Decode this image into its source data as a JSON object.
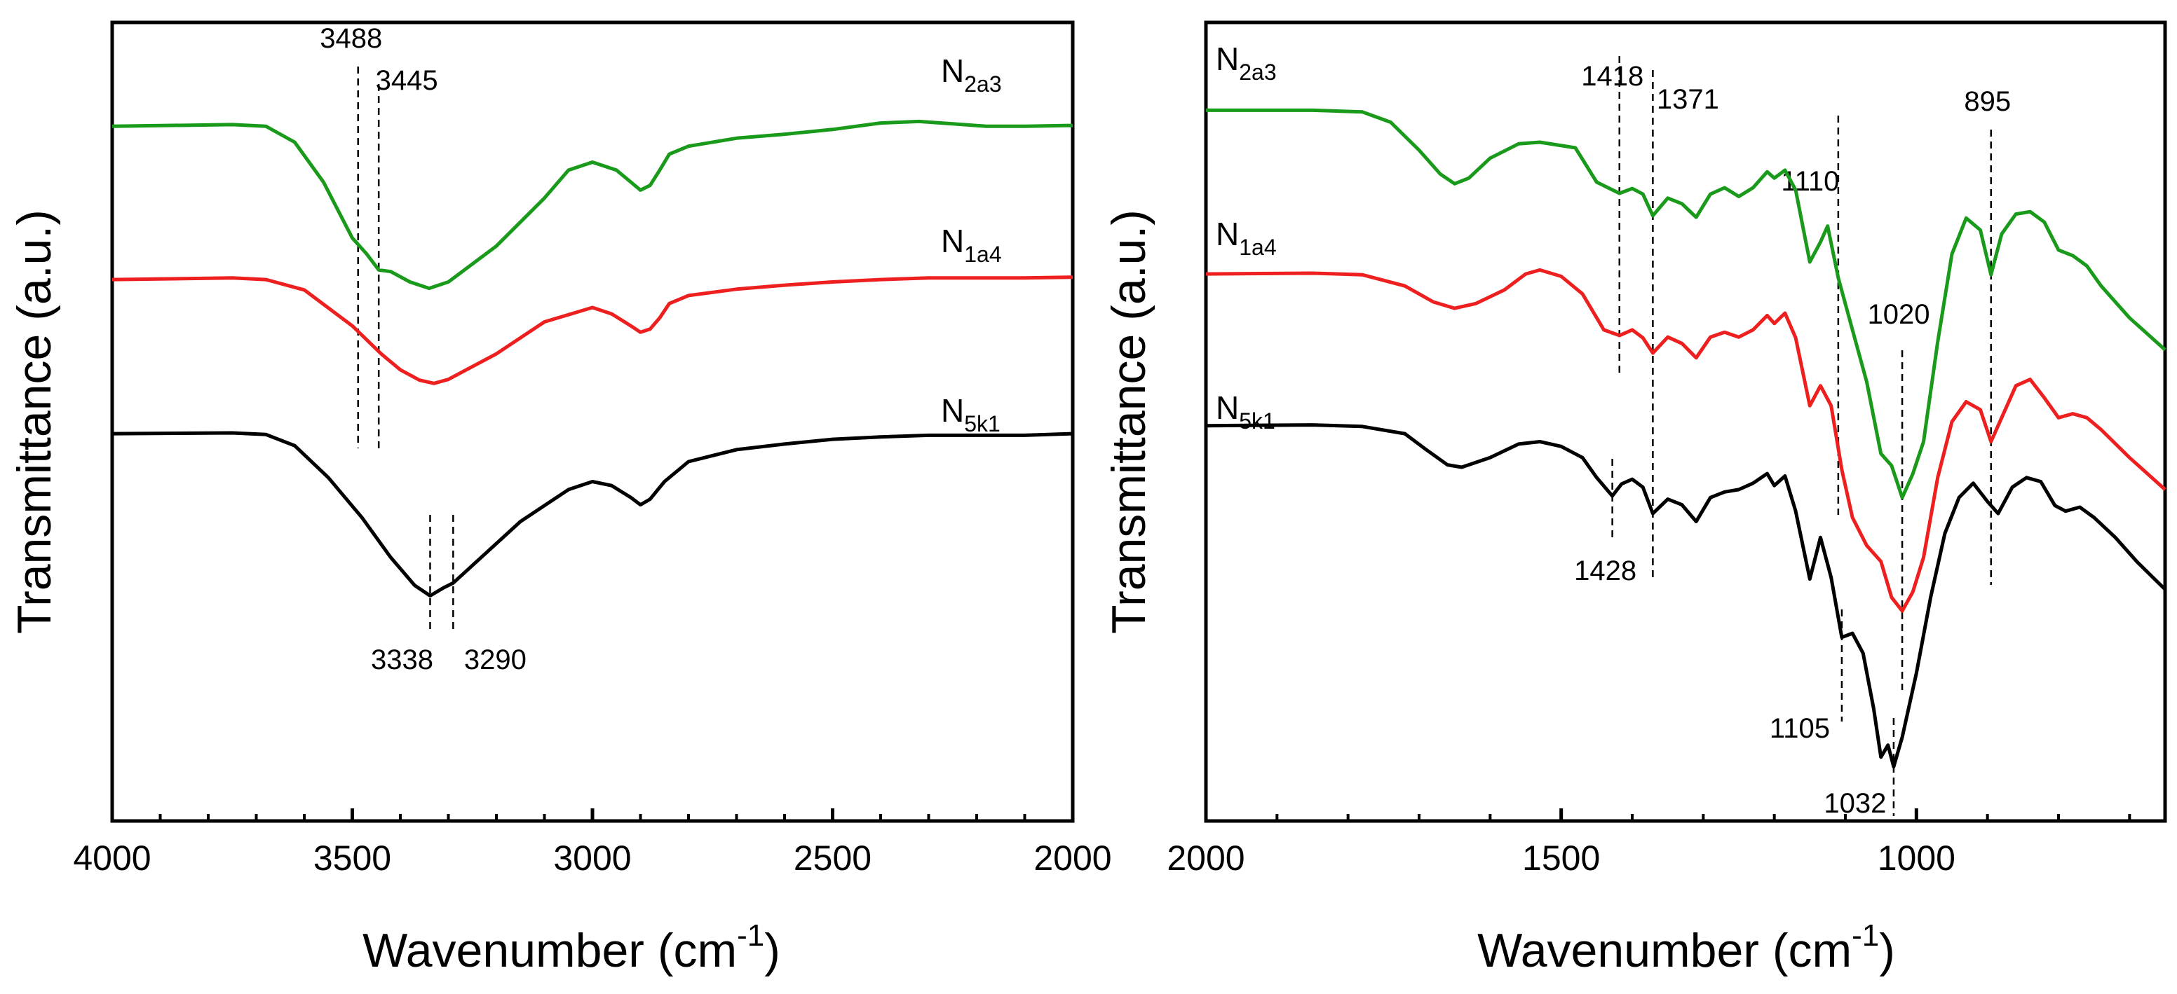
{
  "chart_data": [
    {
      "type": "line",
      "xlabel": "Wavenumber (cm-1)",
      "xlabel_main": "Wavenumber (cm",
      "xlabel_sup": "-1",
      "xlabel_close": ")",
      "ylabel": "Transmittance (a.u.)",
      "xlim": [
        4000,
        2000
      ],
      "ylim": [
        0,
        100
      ],
      "xticks": [
        4000,
        3500,
        3000,
        2500,
        2000
      ],
      "xtick_labels": [
        "4000",
        "3500",
        "3000",
        "2500",
        "2000"
      ],
      "series": [
        {
          "name": "N2a3",
          "base": "N",
          "sub": "2a3",
          "color": "#1a9a1a",
          "points": [
            [
              4000,
              87
            ],
            [
              3750,
              87.2
            ],
            [
              3680,
              87
            ],
            [
              3620,
              85
            ],
            [
              3560,
              80
            ],
            [
              3500,
              73
            ],
            [
              3470,
              71
            ],
            [
              3445,
              69
            ],
            [
              3420,
              68.8
            ],
            [
              3380,
              67.5
            ],
            [
              3340,
              66.7
            ],
            [
              3300,
              67.5
            ],
            [
              3200,
              72
            ],
            [
              3100,
              78
            ],
            [
              3050,
              81.5
            ],
            [
              3000,
              82.5
            ],
            [
              2950,
              81.5
            ],
            [
              2920,
              80
            ],
            [
              2900,
              79
            ],
            [
              2880,
              79.6
            ],
            [
              2860,
              81.5
            ],
            [
              2840,
              83.5
            ],
            [
              2800,
              84.5
            ],
            [
              2700,
              85.5
            ],
            [
              2600,
              86
            ],
            [
              2500,
              86.6
            ],
            [
              2400,
              87.4
            ],
            [
              2320,
              87.6
            ],
            [
              2250,
              87.3
            ],
            [
              2180,
              87
            ],
            [
              2100,
              87
            ],
            [
              2000,
              87.1
            ]
          ]
        },
        {
          "name": "N1a4",
          "base": "N",
          "sub": "1a4",
          "color": "#ee1f1f",
          "points": [
            [
              4000,
              67.8
            ],
            [
              3750,
              68
            ],
            [
              3680,
              67.8
            ],
            [
              3600,
              66.5
            ],
            [
              3500,
              62
            ],
            [
              3440,
              58.5
            ],
            [
              3400,
              56.5
            ],
            [
              3360,
              55.2
            ],
            [
              3330,
              54.8
            ],
            [
              3300,
              55.3
            ],
            [
              3200,
              58.5
            ],
            [
              3100,
              62.5
            ],
            [
              3000,
              64.3
            ],
            [
              2960,
              63.5
            ],
            [
              2920,
              62
            ],
            [
              2900,
              61.2
            ],
            [
              2880,
              61.6
            ],
            [
              2860,
              63
            ],
            [
              2840,
              64.8
            ],
            [
              2800,
              65.8
            ],
            [
              2700,
              66.6
            ],
            [
              2600,
              67.1
            ],
            [
              2500,
              67.5
            ],
            [
              2400,
              67.8
            ],
            [
              2300,
              68
            ],
            [
              2200,
              68
            ],
            [
              2100,
              68
            ],
            [
              2000,
              68.1
            ]
          ]
        },
        {
          "name": "N5k1",
          "base": "N",
          "sub": "5k1",
          "color": "#000000",
          "points": [
            [
              4000,
              48.5
            ],
            [
              3750,
              48.6
            ],
            [
              3680,
              48.4
            ],
            [
              3620,
              47
            ],
            [
              3550,
              43
            ],
            [
              3480,
              38
            ],
            [
              3420,
              33
            ],
            [
              3370,
              29.5
            ],
            [
              3338,
              28.2
            ],
            [
              3310,
              29.2
            ],
            [
              3290,
              29.8
            ],
            [
              3250,
              32
            ],
            [
              3150,
              37.5
            ],
            [
              3050,
              41.5
            ],
            [
              3000,
              42.5
            ],
            [
              2960,
              42
            ],
            [
              2920,
              40.5
            ],
            [
              2900,
              39.6
            ],
            [
              2880,
              40.3
            ],
            [
              2850,
              42.5
            ],
            [
              2800,
              45
            ],
            [
              2700,
              46.5
            ],
            [
              2600,
              47.2
            ],
            [
              2500,
              47.8
            ],
            [
              2400,
              48.1
            ],
            [
              2300,
              48.3
            ],
            [
              2200,
              48.3
            ],
            [
              2100,
              48.3
            ],
            [
              2000,
              48.5
            ]
          ]
        }
      ],
      "annotations": [
        {
          "x": 3488,
          "label": "3488"
        },
        {
          "x": 3445,
          "label": "3445"
        },
        {
          "x": 3338,
          "label": "3338"
        },
        {
          "x": 3290,
          "label": "3290"
        }
      ]
    },
    {
      "type": "line",
      "xlabel": "Wavenumber (cm-1)",
      "xlabel_main": "Wavenumber (cm",
      "xlabel_sup": "-1",
      "xlabel_close": ")",
      "ylabel": "Transmittance (a.u.)",
      "xlim": [
        2000,
        650
      ],
      "ylim": [
        0,
        100
      ],
      "xticks": [
        2000,
        1500,
        1000
      ],
      "xtick_labels": [
        "2000",
        "1500",
        "1000"
      ],
      "series": [
        {
          "name": "N2a3",
          "base": "N",
          "sub": "2a3",
          "color": "#1a9a1a",
          "points": [
            [
              2000,
              89
            ],
            [
              1850,
              89
            ],
            [
              1780,
              88.8
            ],
            [
              1740,
              87.5
            ],
            [
              1700,
              84
            ],
            [
              1670,
              81
            ],
            [
              1650,
              79.8
            ],
            [
              1630,
              80.5
            ],
            [
              1600,
              83
            ],
            [
              1560,
              84.8
            ],
            [
              1530,
              85
            ],
            [
              1480,
              84.3
            ],
            [
              1450,
              80
            ],
            [
              1418,
              78.6
            ],
            [
              1400,
              79.2
            ],
            [
              1385,
              78.5
            ],
            [
              1371,
              75.8
            ],
            [
              1350,
              78
            ],
            [
              1330,
              77.3
            ],
            [
              1310,
              75.6
            ],
            [
              1290,
              78.5
            ],
            [
              1270,
              79.3
            ],
            [
              1250,
              78.2
            ],
            [
              1230,
              79.3
            ],
            [
              1210,
              81.3
            ],
            [
              1200,
              80.5
            ],
            [
              1185,
              81.5
            ],
            [
              1170,
              79
            ],
            [
              1150,
              70
            ],
            [
              1135,
              72.5
            ],
            [
              1125,
              74.5
            ],
            [
              1110,
              68
            ],
            [
              1090,
              61.5
            ],
            [
              1070,
              55
            ],
            [
              1050,
              46
            ],
            [
              1035,
              44.5
            ],
            [
              1020,
              40.5
            ],
            [
              1005,
              43.5
            ],
            [
              990,
              47.5
            ],
            [
              970,
              60
            ],
            [
              950,
              71
            ],
            [
              930,
              75.5
            ],
            [
              910,
              74
            ],
            [
              895,
              68.4
            ],
            [
              880,
              73.5
            ],
            [
              860,
              76
            ],
            [
              840,
              76.3
            ],
            [
              820,
              75
            ],
            [
              800,
              71.5
            ],
            [
              780,
              70.8
            ],
            [
              760,
              69.5
            ],
            [
              740,
              67
            ],
            [
              700,
              63
            ],
            [
              650,
              59
            ]
          ]
        },
        {
          "name": "N1a4",
          "base": "N",
          "sub": "1a4",
          "color": "#ee1f1f",
          "points": [
            [
              2000,
              68.5
            ],
            [
              1850,
              68.6
            ],
            [
              1780,
              68.4
            ],
            [
              1720,
              67
            ],
            [
              1680,
              65
            ],
            [
              1650,
              64.2
            ],
            [
              1620,
              64.8
            ],
            [
              1580,
              66.5
            ],
            [
              1550,
              68.5
            ],
            [
              1530,
              69
            ],
            [
              1500,
              68.2
            ],
            [
              1470,
              66
            ],
            [
              1440,
              61.5
            ],
            [
              1418,
              60.8
            ],
            [
              1400,
              61.5
            ],
            [
              1385,
              60.5
            ],
            [
              1371,
              58.6
            ],
            [
              1350,
              60.6
            ],
            [
              1330,
              59.8
            ],
            [
              1310,
              58
            ],
            [
              1290,
              60.6
            ],
            [
              1270,
              61.2
            ],
            [
              1250,
              60.6
            ],
            [
              1230,
              61.5
            ],
            [
              1210,
              63.3
            ],
            [
              1200,
              62.3
            ],
            [
              1185,
              63.6
            ],
            [
              1170,
              60.5
            ],
            [
              1150,
              52
            ],
            [
              1135,
              54.5
            ],
            [
              1120,
              52
            ],
            [
              1105,
              44
            ],
            [
              1090,
              38
            ],
            [
              1070,
              34.5
            ],
            [
              1050,
              32.5
            ],
            [
              1035,
              28
            ],
            [
              1020,
              26.3
            ],
            [
              1005,
              28.7
            ],
            [
              990,
              33
            ],
            [
              970,
              43
            ],
            [
              950,
              50
            ],
            [
              930,
              52.5
            ],
            [
              910,
              51.5
            ],
            [
              895,
              47.5
            ],
            [
              880,
              50.5
            ],
            [
              860,
              54.5
            ],
            [
              840,
              55.3
            ],
            [
              820,
              53
            ],
            [
              800,
              50.5
            ],
            [
              780,
              51
            ],
            [
              760,
              50.5
            ],
            [
              740,
              49
            ],
            [
              700,
              45.5
            ],
            [
              650,
              41.5
            ]
          ]
        },
        {
          "name": "N5k1",
          "base": "N",
          "sub": "5k1",
          "color": "#000000",
          "points": [
            [
              2000,
              49.5
            ],
            [
              1850,
              49.6
            ],
            [
              1780,
              49.4
            ],
            [
              1720,
              48.5
            ],
            [
              1690,
              46.5
            ],
            [
              1660,
              44.6
            ],
            [
              1640,
              44.3
            ],
            [
              1600,
              45.5
            ],
            [
              1560,
              47.2
            ],
            [
              1530,
              47.5
            ],
            [
              1500,
              46.9
            ],
            [
              1470,
              45.5
            ],
            [
              1450,
              43
            ],
            [
              1428,
              40.7
            ],
            [
              1415,
              42.2
            ],
            [
              1400,
              42.8
            ],
            [
              1385,
              41.8
            ],
            [
              1371,
              38.5
            ],
            [
              1350,
              40.3
            ],
            [
              1330,
              39.6
            ],
            [
              1310,
              37.5
            ],
            [
              1290,
              40.5
            ],
            [
              1270,
              41.2
            ],
            [
              1250,
              41.5
            ],
            [
              1230,
              42.3
            ],
            [
              1210,
              43.5
            ],
            [
              1200,
              42
            ],
            [
              1185,
              43.2
            ],
            [
              1170,
              38.8
            ],
            [
              1150,
              30.3
            ],
            [
              1135,
              35.5
            ],
            [
              1120,
              30.5
            ],
            [
              1105,
              23
            ],
            [
              1090,
              23.5
            ],
            [
              1075,
              21
            ],
            [
              1060,
              14
            ],
            [
              1050,
              8
            ],
            [
              1040,
              9.5
            ],
            [
              1032,
              6.8
            ],
            [
              1020,
              10.5
            ],
            [
              1000,
              18.5
            ],
            [
              980,
              28
            ],
            [
              960,
              36
            ],
            [
              940,
              40.5
            ],
            [
              920,
              42.3
            ],
            [
              900,
              40
            ],
            [
              885,
              38.5
            ],
            [
              865,
              41.8
            ],
            [
              845,
              43
            ],
            [
              825,
              42.5
            ],
            [
              805,
              39.5
            ],
            [
              790,
              38.8
            ],
            [
              770,
              39.3
            ],
            [
              750,
              38
            ],
            [
              720,
              35.5
            ],
            [
              690,
              32.5
            ],
            [
              650,
              29
            ]
          ]
        }
      ],
      "annotations": [
        {
          "x": 1418,
          "label": "1418"
        },
        {
          "x": 1371,
          "label": "1371"
        },
        {
          "x": 1110,
          "label": "1110"
        },
        {
          "x": 1020,
          "label": "1020"
        },
        {
          "x": 895,
          "label": "895"
        },
        {
          "x": 1428,
          "label": "1428"
        },
        {
          "x": 1105,
          "label": "1105"
        },
        {
          "x": 1032,
          "label": "1032"
        }
      ]
    }
  ]
}
